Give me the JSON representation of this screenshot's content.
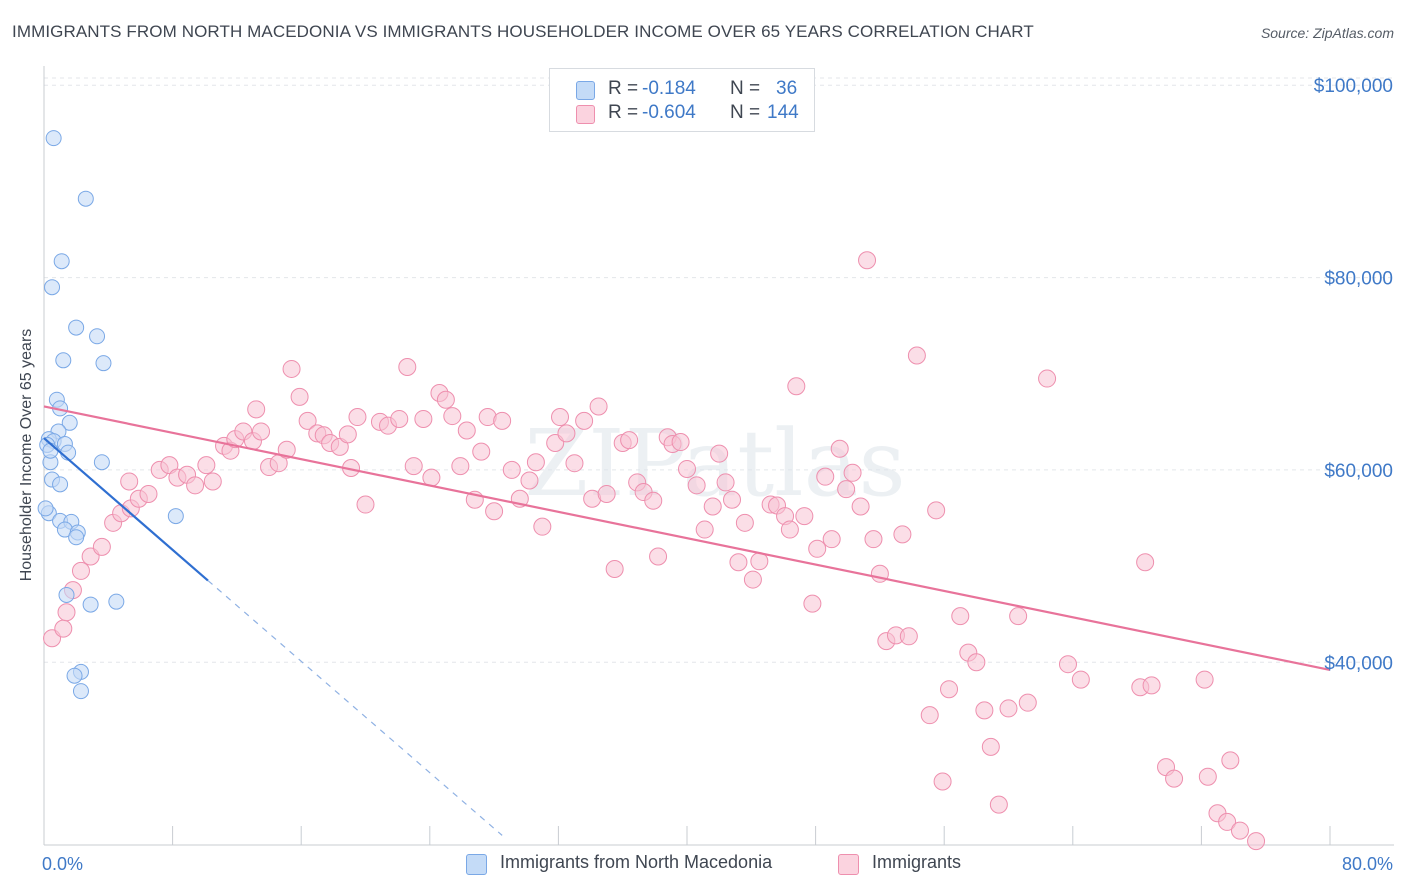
{
  "title": "IMMIGRANTS FROM NORTH MACEDONIA VS IMMIGRANTS HOUSEHOLDER INCOME OVER 65 YEARS CORRELATION CHART",
  "source": "Source: ZipAtlas.com",
  "watermark": "ZIPatlas",
  "legend": {
    "r_label": "R =",
    "n_label": "N =",
    "rows": [
      {
        "r": "-0.184",
        "n": "36",
        "color": "#a9c8f0"
      },
      {
        "r": "-0.604",
        "n": "144",
        "color": "#f6b8cb"
      }
    ]
  },
  "bottom_legend": [
    {
      "label": "Immigrants from North Macedonia",
      "color": "#a9c8f0"
    },
    {
      "label": "Immigrants",
      "color": "#f6b8cb"
    }
  ],
  "colors": {
    "blue_line": "#2f6fd1",
    "pink_line": "#e8739a",
    "blue_point": "#7aa8e6",
    "pink_point": "#ee8fae",
    "tick_text": "#3f79c7"
  },
  "chart_data": {
    "type": "scatter",
    "title": "IMMIGRANTS FROM NORTH MACEDONIA VS IMMIGRANTS HOUSEHOLDER INCOME OVER 65 YEARS CORRELATION CHART",
    "xlabel": "",
    "ylabel": "Householder Income Over 65 years",
    "xlim": [
      0,
      80
    ],
    "ylim": [
      21000,
      102000
    ],
    "x_tick_labels": [
      "0.0%",
      "80.0%"
    ],
    "y_ticks": [
      40000,
      60000,
      80000,
      100000
    ],
    "y_tick_labels": [
      "$40,000",
      "$60,000",
      "$80,000",
      "$100,000"
    ],
    "grid": true,
    "legend_position": "top-center",
    "series": [
      {
        "name": "Immigrants from North Macedonia",
        "r": -0.184,
        "n": 36,
        "trend": {
          "x": [
            0,
            10.2
          ],
          "y": [
            63300,
            48500
          ],
          "dashed_to": [
            28.5,
            22000
          ]
        },
        "points": [
          [
            0.6,
            94500
          ],
          [
            2.6,
            88200
          ],
          [
            1.1,
            81700
          ],
          [
            0.5,
            79000
          ],
          [
            2.0,
            74800
          ],
          [
            3.3,
            73900
          ],
          [
            1.2,
            71400
          ],
          [
            3.7,
            71100
          ],
          [
            0.8,
            67300
          ],
          [
            1.0,
            66400
          ],
          [
            1.6,
            64900
          ],
          [
            0.9,
            64000
          ],
          [
            0.3,
            63200
          ],
          [
            0.6,
            63000
          ],
          [
            1.3,
            62700
          ],
          [
            0.2,
            62600
          ],
          [
            1.5,
            61800
          ],
          [
            0.4,
            60800
          ],
          [
            3.6,
            60800
          ],
          [
            0.5,
            59000
          ],
          [
            1.0,
            58500
          ],
          [
            0.3,
            55500
          ],
          [
            1.0,
            54700
          ],
          [
            1.7,
            54600
          ],
          [
            8.2,
            55200
          ],
          [
            1.3,
            53800
          ],
          [
            2.1,
            53500
          ],
          [
            2.0,
            53000
          ],
          [
            1.4,
            47000
          ],
          [
            2.9,
            46000
          ],
          [
            4.5,
            46300
          ],
          [
            2.3,
            39000
          ],
          [
            1.9,
            38600
          ],
          [
            2.3,
            37000
          ],
          [
            0.1,
            56000
          ],
          [
            0.4,
            62000
          ]
        ]
      },
      {
        "name": "Immigrants",
        "r": -0.604,
        "n": 144,
        "trend": {
          "x": [
            0,
            80
          ],
          "y": [
            66600,
            39200
          ]
        },
        "points": [
          [
            0.5,
            42500
          ],
          [
            1.2,
            43500
          ],
          [
            1.4,
            45200
          ],
          [
            1.8,
            47500
          ],
          [
            2.3,
            49500
          ],
          [
            2.9,
            51000
          ],
          [
            3.6,
            52000
          ],
          [
            4.3,
            54500
          ],
          [
            4.8,
            55500
          ],
          [
            5.4,
            56000
          ],
          [
            5.9,
            57000
          ],
          [
            6.5,
            57500
          ],
          [
            5.3,
            58800
          ],
          [
            7.2,
            60000
          ],
          [
            7.8,
            60500
          ],
          [
            8.3,
            59200
          ],
          [
            8.9,
            59500
          ],
          [
            9.4,
            58400
          ],
          [
            10.1,
            60500
          ],
          [
            10.5,
            58800
          ],
          [
            11.2,
            62500
          ],
          [
            11.6,
            62000
          ],
          [
            11.9,
            63200
          ],
          [
            12.4,
            64000
          ],
          [
            13.0,
            63000
          ],
          [
            13.5,
            64000
          ],
          [
            13.2,
            66300
          ],
          [
            14.0,
            60300
          ],
          [
            14.6,
            60700
          ],
          [
            15.1,
            62100
          ],
          [
            15.4,
            70500
          ],
          [
            15.9,
            67600
          ],
          [
            16.4,
            65100
          ],
          [
            17.0,
            63800
          ],
          [
            17.4,
            63600
          ],
          [
            17.8,
            62800
          ],
          [
            18.4,
            62400
          ],
          [
            18.9,
            63700
          ],
          [
            19.5,
            65500
          ],
          [
            19.1,
            60200
          ],
          [
            20.0,
            56400
          ],
          [
            20.9,
            65000
          ],
          [
            21.4,
            64600
          ],
          [
            22.1,
            65300
          ],
          [
            22.6,
            70700
          ],
          [
            23.0,
            60400
          ],
          [
            23.6,
            65300
          ],
          [
            24.1,
            59200
          ],
          [
            24.6,
            68000
          ],
          [
            25.0,
            67300
          ],
          [
            25.4,
            65600
          ],
          [
            25.9,
            60400
          ],
          [
            26.3,
            64100
          ],
          [
            26.8,
            56900
          ],
          [
            27.2,
            61900
          ],
          [
            27.6,
            65500
          ],
          [
            28.0,
            55700
          ],
          [
            28.5,
            65100
          ],
          [
            29.1,
            60000
          ],
          [
            29.6,
            57000
          ],
          [
            30.2,
            58900
          ],
          [
            30.6,
            60800
          ],
          [
            31.0,
            54100
          ],
          [
            31.8,
            62800
          ],
          [
            32.1,
            65500
          ],
          [
            32.5,
            63800
          ],
          [
            33.0,
            60700
          ],
          [
            33.6,
            65100
          ],
          [
            34.1,
            57000
          ],
          [
            34.5,
            66600
          ],
          [
            35.0,
            57500
          ],
          [
            35.5,
            49700
          ],
          [
            36.0,
            62800
          ],
          [
            36.4,
            63100
          ],
          [
            36.9,
            58700
          ],
          [
            37.3,
            57700
          ],
          [
            37.9,
            56800
          ],
          [
            38.2,
            51000
          ],
          [
            38.8,
            63400
          ],
          [
            39.1,
            62700
          ],
          [
            39.6,
            62900
          ],
          [
            40.0,
            60100
          ],
          [
            40.6,
            58400
          ],
          [
            41.1,
            53800
          ],
          [
            41.6,
            56200
          ],
          [
            42.0,
            61700
          ],
          [
            42.4,
            58700
          ],
          [
            42.8,
            56900
          ],
          [
            43.2,
            50400
          ],
          [
            43.6,
            54500
          ],
          [
            44.1,
            48600
          ],
          [
            44.5,
            50500
          ],
          [
            45.2,
            56400
          ],
          [
            45.6,
            56300
          ],
          [
            46.1,
            55200
          ],
          [
            46.4,
            53800
          ],
          [
            46.8,
            68700
          ],
          [
            47.3,
            55200
          ],
          [
            47.8,
            46100
          ],
          [
            48.1,
            51800
          ],
          [
            48.6,
            59300
          ],
          [
            49.0,
            52800
          ],
          [
            49.5,
            62200
          ],
          [
            49.9,
            58000
          ],
          [
            50.3,
            59700
          ],
          [
            50.8,
            56200
          ],
          [
            51.2,
            81800
          ],
          [
            51.6,
            52800
          ],
          [
            52.0,
            49200
          ],
          [
            52.4,
            42200
          ],
          [
            53.0,
            42800
          ],
          [
            53.4,
            53300
          ],
          [
            53.8,
            42700
          ],
          [
            54.3,
            71900
          ],
          [
            55.1,
            34500
          ],
          [
            55.5,
            55800
          ],
          [
            55.9,
            27600
          ],
          [
            56.3,
            37200
          ],
          [
            57.0,
            44800
          ],
          [
            57.5,
            41000
          ],
          [
            58.0,
            40000
          ],
          [
            58.5,
            35000
          ],
          [
            58.9,
            31200
          ],
          [
            59.4,
            25200
          ],
          [
            60.0,
            35200
          ],
          [
            60.6,
            44800
          ],
          [
            61.2,
            35800
          ],
          [
            62.4,
            69500
          ],
          [
            63.7,
            39800
          ],
          [
            64.5,
            38200
          ],
          [
            68.2,
            37400
          ],
          [
            68.5,
            50400
          ],
          [
            68.9,
            37600
          ],
          [
            69.8,
            29100
          ],
          [
            70.3,
            27900
          ],
          [
            72.2,
            38200
          ],
          [
            72.4,
            28100
          ],
          [
            73.8,
            29800
          ],
          [
            73.0,
            24300
          ],
          [
            73.6,
            23400
          ],
          [
            74.4,
            22500
          ],
          [
            75.4,
            21400
          ]
        ]
      }
    ]
  }
}
